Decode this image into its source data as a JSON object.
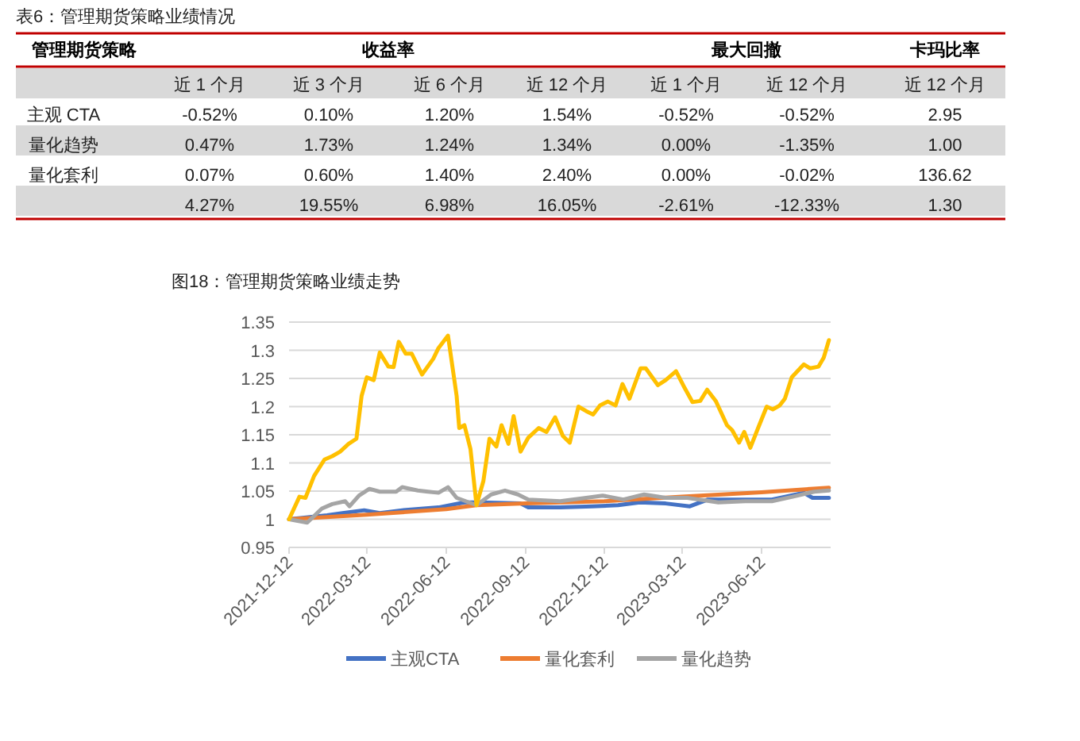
{
  "chart_data": [
    {
      "type": "other",
      "title": "表6：管理期货策略业绩情况",
      "annotations": [
        "管理期货策略",
        "收益率",
        "最大回撤",
        "卡玛比率"
      ],
      "categories": [
        "近 1 个月",
        "近 3 个月",
        "近 6 个月",
        "近 12 个月",
        "近 1 个月",
        "近 12 个月",
        "近 12 个月"
      ],
      "y_categories": [
        "主观 CTA",
        "量化趋势",
        "量化套利",
        null
      ],
      "cell_labels": [
        [
          "-0.52%",
          "0.10%",
          "1.20%",
          "1.54%",
          "-0.52%",
          "-0.52%",
          "2.95"
        ],
        [
          "0.47%",
          "1.73%",
          "1.24%",
          "1.34%",
          "0.00%",
          "-1.35%",
          "1.00"
        ],
        [
          "0.07%",
          "0.60%",
          "1.40%",
          "2.40%",
          "0.00%",
          "-0.02%",
          "136.62"
        ],
        [
          "4.27%",
          "19.55%",
          "6.98%",
          "16.05%",
          "-2.61%",
          "-12.33%",
          "1.30"
        ]
      ]
    },
    {
      "type": "line",
      "title": "图18：管理期货策略业绩走势",
      "xlim": [
        "2021-12-12",
        "2023-08-31"
      ],
      "xticks": [
        "2021-12-12",
        "2022-03-12",
        "2022-06-12",
        "2022-09-12",
        "2022-12-12",
        "2023-03-12",
        "2023-06-12"
      ],
      "ylim": [
        0.95,
        1.35
      ],
      "yticks": [
        0.95,
        1,
        1.05,
        1.1,
        1.15,
        1.2,
        1.25,
        1.3,
        1.35
      ],
      "grid": "y",
      "legend": "bottom",
      "series": [
        {
          "name": "主观CTA",
          "color": "#4472c4",
          "x": [
            "2021-12-12",
            "2022-01-25",
            "2022-02-12",
            "2022-03-09",
            "2022-03-27",
            "2022-04-22",
            "2022-06-03",
            "2022-07-03",
            "2022-07-21",
            "2022-09-06",
            "2022-09-15",
            "2022-10-22",
            "2022-11-28",
            "2022-12-28",
            "2023-01-22",
            "2023-02-21",
            "2023-03-21",
            "2023-04-11",
            "2023-05-12",
            "2023-06-24",
            "2023-07-31",
            "2023-08-10",
            "2023-08-29"
          ],
          "values": [
            1.0,
            1.007,
            1.011,
            1.016,
            1.011,
            1.016,
            1.021,
            1.03,
            1.03,
            1.028,
            1.021,
            1.021,
            1.023,
            1.025,
            1.03,
            1.028,
            1.023,
            1.035,
            1.035,
            1.035,
            1.047,
            1.038,
            1.038
          ]
        },
        {
          "name": "量化套利",
          "color": "#ed7d31",
          "x": [
            "2021-12-12",
            "2022-03-12",
            "2022-06-12",
            "2022-07-17",
            "2022-09-12",
            "2022-12-12",
            "2023-03-12",
            "2023-06-12",
            "2023-08-29"
          ],
          "values": [
            1.0,
            1.008,
            1.018,
            1.025,
            1.028,
            1.032,
            1.04,
            1.048,
            1.056
          ]
        },
        {
          "name": "量化趋势",
          "color": "#a5a5a5",
          "x": [
            "2021-12-12",
            "2022-01-02",
            "2022-01-19",
            "2022-01-31",
            "2022-02-15",
            "2022-02-20",
            "2022-03-03",
            "2022-03-15",
            "2022-03-27",
            "2022-04-15",
            "2022-04-22",
            "2022-05-10",
            "2022-05-22",
            "2022-06-03",
            "2022-06-14",
            "2022-06-24",
            "2022-07-17",
            "2022-08-03",
            "2022-08-19",
            "2022-09-03",
            "2022-09-15",
            "2022-10-22",
            "2022-11-21",
            "2022-12-10",
            "2023-01-03",
            "2023-01-27",
            "2023-02-21",
            "2023-03-18",
            "2023-04-23",
            "2023-05-24",
            "2023-06-24",
            "2023-07-18",
            "2023-08-12",
            "2023-08-29"
          ],
          "values": [
            1.0,
            0.994,
            1.019,
            1.027,
            1.032,
            1.023,
            1.042,
            1.054,
            1.049,
            1.049,
            1.057,
            1.051,
            1.049,
            1.047,
            1.057,
            1.038,
            1.025,
            1.044,
            1.051,
            1.044,
            1.035,
            1.032,
            1.038,
            1.042,
            1.035,
            1.044,
            1.038,
            1.038,
            1.03,
            1.032,
            1.032,
            1.04,
            1.049,
            1.051
          ]
        },
        {
          "color": "#ffc000",
          "x": [
            "2021-12-12",
            "2021-12-24",
            "2021-12-31",
            "2022-01-10",
            "2022-01-22",
            "2022-01-31",
            "2022-02-09",
            "2022-02-19",
            "2022-02-28",
            "2022-03-06",
            "2022-03-12",
            "2022-03-20",
            "2022-03-27",
            "2022-04-06",
            "2022-04-12",
            "2022-04-18",
            "2022-04-26",
            "2022-05-03",
            "2022-05-15",
            "2022-05-28",
            "2022-06-03",
            "2022-06-14",
            "2022-06-24",
            "2022-06-27",
            "2022-07-03",
            "2022-07-10",
            "2022-07-17",
            "2022-07-25",
            "2022-08-01",
            "2022-08-09",
            "2022-08-15",
            "2022-08-23",
            "2022-08-29",
            "2022-09-06",
            "2022-09-15",
            "2022-09-27",
            "2022-10-06",
            "2022-10-16",
            "2022-10-25",
            "2022-11-02",
            "2022-11-12",
            "2022-11-21",
            "2022-11-29",
            "2022-12-07",
            "2022-12-16",
            "2022-12-25",
            "2023-01-02",
            "2023-01-10",
            "2023-01-23",
            "2023-01-29",
            "2023-02-12",
            "2023-02-21",
            "2023-03-05",
            "2023-03-15",
            "2023-03-24",
            "2023-04-02",
            "2023-04-10",
            "2023-04-20",
            "2023-05-03",
            "2023-05-09",
            "2023-05-17",
            "2023-05-23",
            "2023-05-30",
            "2023-06-08",
            "2023-06-18",
            "2023-06-25",
            "2023-07-03",
            "2023-07-09",
            "2023-07-17",
            "2023-07-31",
            "2023-08-07",
            "2023-08-17",
            "2023-08-23",
            "2023-08-29"
          ],
          "values": [
            1.0,
            1.04,
            1.038,
            1.077,
            1.106,
            1.112,
            1.12,
            1.134,
            1.143,
            1.219,
            1.252,
            1.247,
            1.296,
            1.271,
            1.27,
            1.315,
            1.294,
            1.294,
            1.257,
            1.285,
            1.304,
            1.326,
            1.219,
            1.162,
            1.167,
            1.125,
            1.025,
            1.068,
            1.143,
            1.129,
            1.167,
            1.134,
            1.183,
            1.12,
            1.145,
            1.162,
            1.155,
            1.181,
            1.148,
            1.136,
            1.2,
            1.192,
            1.186,
            1.202,
            1.209,
            1.202,
            1.24,
            1.214,
            1.268,
            1.268,
            1.238,
            1.247,
            1.263,
            1.233,
            1.208,
            1.21,
            1.23,
            1.21,
            1.167,
            1.158,
            1.136,
            1.155,
            1.127,
            1.162,
            1.2,
            1.195,
            1.202,
            1.214,
            1.252,
            1.275,
            1.268,
            1.271,
            1.287,
            1.318
          ]
        }
      ]
    }
  ]
}
